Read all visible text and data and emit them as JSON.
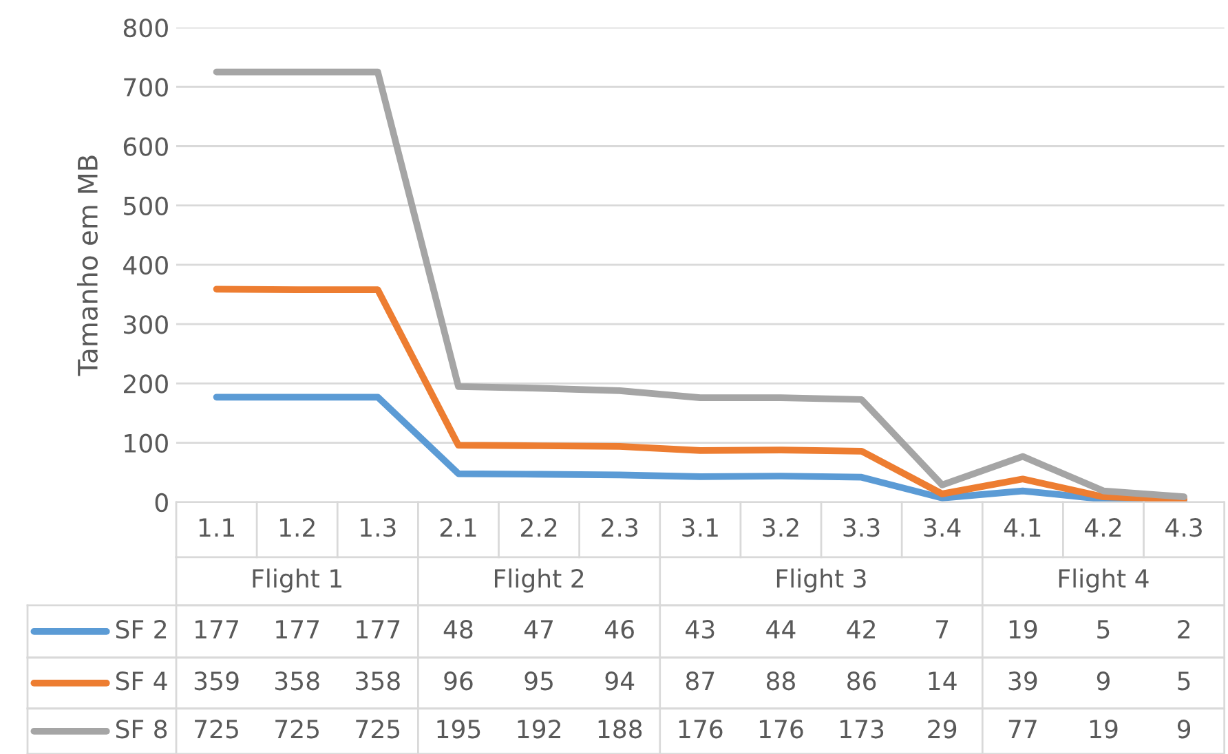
{
  "chart_data": {
    "type": "line",
    "ylabel": "Tamanho em MB",
    "categories": [
      "1.1",
      "1.2",
      "1.3",
      "2.1",
      "2.2",
      "2.3",
      "3.1",
      "3.2",
      "3.3",
      "3.4",
      "4.1",
      "4.2",
      "4.3"
    ],
    "series": [
      {
        "name": "SF 2",
        "color": "#5b9bd5",
        "values": [
          177,
          177,
          177,
          48,
          47,
          46,
          43,
          44,
          42,
          7,
          19,
          5,
          2
        ]
      },
      {
        "name": "SF 4",
        "color": "#ed7d31",
        "values": [
          359,
          358,
          358,
          96,
          95,
          94,
          87,
          88,
          86,
          14,
          39,
          9,
          5
        ]
      },
      {
        "name": "SF 8",
        "color": "#a5a5a5",
        "values": [
          725,
          725,
          725,
          195,
          192,
          188,
          176,
          176,
          173,
          29,
          77,
          19,
          9
        ]
      }
    ],
    "annotations": [
      "Flight 1",
      "Flight 2",
      "Flight 3",
      "Flight 4"
    ],
    "legend": "bottom",
    "ylim": [
      0,
      800
    ],
    "yticks": [
      0,
      100,
      200,
      300,
      400,
      500,
      600,
      700,
      800
    ],
    "grid": "y",
    "data_labels": true,
    "line_style": "solid",
    "marker": "none"
  }
}
